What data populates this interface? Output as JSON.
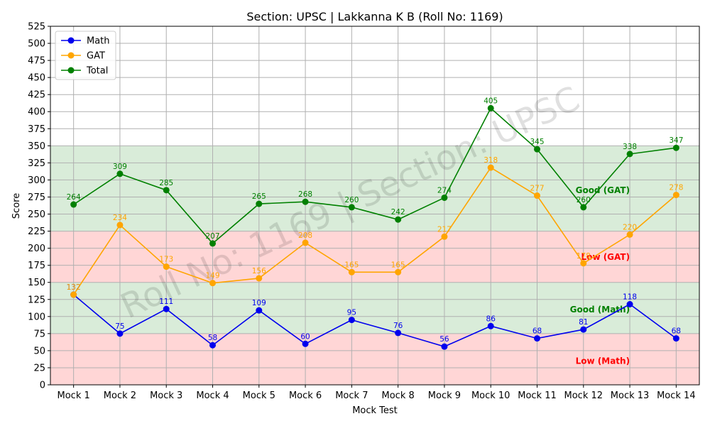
{
  "chart_data": {
    "type": "line",
    "title": "Section: UPSC | Lakkanna K B (Roll No: 1169)",
    "xlabel": "Mock Test",
    "ylabel": "Score",
    "ylim": [
      0,
      525
    ],
    "ytick_step": 25,
    "grid": true,
    "legend_position": "top-left",
    "categories": [
      "Mock 1",
      "Mock 2",
      "Mock 3",
      "Mock 4",
      "Mock 5",
      "Mock 6",
      "Mock 7",
      "Mock 8",
      "Mock 9",
      "Mock 10",
      "Mock 11",
      "Mock 12",
      "Mock 13",
      "Mock 14"
    ],
    "series": [
      {
        "name": "Math",
        "color": "#0000ee",
        "values": [
          132,
          75,
          111,
          58,
          109,
          60,
          95,
          76,
          56,
          86,
          68,
          81,
          118,
          68
        ]
      },
      {
        "name": "GAT",
        "color": "#ffa500",
        "values": [
          132,
          234,
          173,
          149,
          156,
          208,
          165,
          165,
          217,
          318,
          277,
          178,
          220,
          278
        ]
      },
      {
        "name": "Total",
        "color": "#008000",
        "values": [
          264,
          309,
          285,
          207,
          265,
          268,
          260,
          242,
          274,
          405,
          345,
          260,
          338,
          347
        ]
      }
    ],
    "bands": [
      {
        "from": 0,
        "to": 75,
        "color": "#ffd6d6"
      },
      {
        "from": 75,
        "to": 150,
        "color": "#d9ecd9"
      },
      {
        "from": 150,
        "to": 225,
        "color": "#ffd6d6"
      },
      {
        "from": 225,
        "to": 350,
        "color": "#d9ecd9"
      }
    ],
    "band_labels": [
      {
        "text": "Good (GAT)",
        "color": "#008000",
        "y": 285
      },
      {
        "text": "Low (GAT)",
        "color": "#ff0000",
        "y": 187
      },
      {
        "text": "Good (Math)",
        "color": "#008000",
        "y": 110
      },
      {
        "text": "Low (Math)",
        "color": "#ff0000",
        "y": 35
      }
    ],
    "watermark": "Roll No: 1169 | Section: UPSC"
  }
}
